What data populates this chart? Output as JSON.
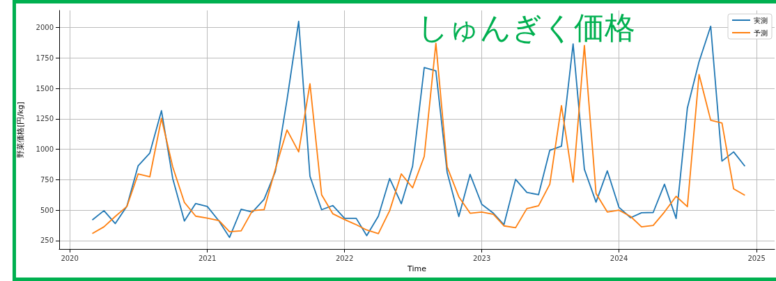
{
  "chart_data": {
    "type": "line",
    "title": "しゅんぎく価格",
    "xlabel": "Time",
    "ylabel": "野菜価格[円/kg]",
    "x": [
      "2020-03",
      "2020-04",
      "2020-05",
      "2020-06",
      "2020-07",
      "2020-08",
      "2020-09",
      "2020-10",
      "2020-11",
      "2020-12",
      "2021-01",
      "2021-02",
      "2021-03",
      "2021-04",
      "2021-05",
      "2021-06",
      "2021-07",
      "2021-08",
      "2021-09",
      "2021-10",
      "2021-11",
      "2021-12",
      "2022-01",
      "2022-02",
      "2022-03",
      "2022-04",
      "2022-05",
      "2022-06",
      "2022-07",
      "2022-08",
      "2022-09",
      "2022-10",
      "2022-11",
      "2022-12",
      "2023-01",
      "2023-02",
      "2023-03",
      "2023-04",
      "2023-05",
      "2023-06",
      "2023-07",
      "2023-08",
      "2023-09",
      "2023-10",
      "2023-11",
      "2023-12",
      "2024-01",
      "2024-02",
      "2024-03",
      "2024-04",
      "2024-05",
      "2024-06",
      "2024-07",
      "2024-08",
      "2024-09",
      "2024-10",
      "2024-11",
      "2024-12"
    ],
    "series": [
      {
        "name": "実測",
        "color": "#1f77b4",
        "values": [
          419,
          495,
          389,
          531,
          864,
          968,
          1316,
          759,
          410,
          554,
          529,
          410,
          275,
          507,
          484,
          588,
          816,
          1407,
          2050,
          778,
          503,
          537,
          432,
          432,
          290,
          450,
          759,
          552,
          860,
          1671,
          1643,
          809,
          447,
          793,
          547,
          474,
          380,
          752,
          645,
          626,
          991,
          1025,
          1865,
          835,
          565,
          822,
          522,
          437,
          478,
          480,
          712,
          431,
          1339,
          1719,
          2010,
          902,
          978,
          860
        ]
      },
      {
        "name": "予測",
        "color": "#ff7f0e",
        "values": [
          307,
          362,
          447,
          529,
          797,
          773,
          1253,
          854,
          563,
          450,
          433,
          414,
          322,
          329,
          495,
          503,
          837,
          1158,
          978,
          1538,
          626,
          469,
          422,
          380,
          336,
          307,
          495,
          797,
          683,
          940,
          1871,
          854,
          609,
          474,
          484,
          465,
          370,
          355,
          512,
          535,
          712,
          1358,
          729,
          1852,
          636,
          484,
          499,
          447,
          362,
          374,
          484,
          613,
          528,
          1614,
          1238,
          1215,
          674,
          621
        ]
      }
    ],
    "xlim": [
      "2019-12-04",
      "2025-02-18"
    ],
    "xticks": [
      "2020",
      "2021",
      "2022",
      "2023",
      "2024",
      "2025"
    ],
    "ylim": [
      180,
      2140
    ],
    "yticks": [
      250,
      500,
      750,
      1000,
      1250,
      1500,
      1750,
      2000
    ],
    "grid": true,
    "legend": "top right",
    "line_style": "solid",
    "marker": "none"
  }
}
